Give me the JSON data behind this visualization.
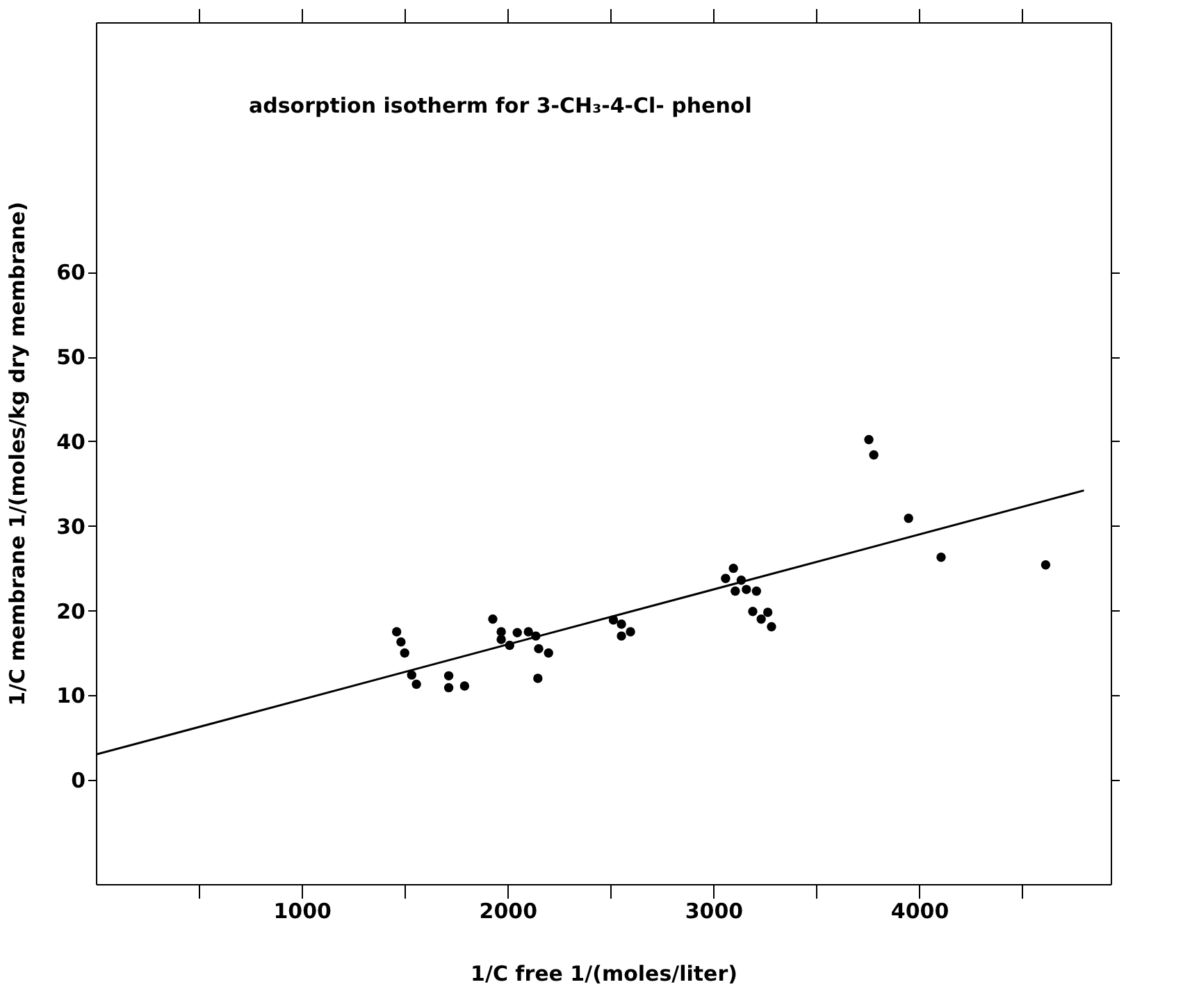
{
  "chart_data": {
    "type": "scatter",
    "xlabel": "1/C free        1/(moles/liter)",
    "ylabel": "1/C membrane        1/(moles/kg dry membrane)",
    "annotations": [
      "adsorption isotherm for 3-CH₃-4-Cl- phenol"
    ],
    "xlim": [
      0,
      4930
    ],
    "ylim": [
      -12.3,
      89.5
    ],
    "xticks": [
      {
        "value": 500,
        "label": null
      },
      1000,
      {
        "value": 1500,
        "label": null
      },
      2000,
      {
        "value": 2500,
        "label": null
      },
      3000,
      {
        "value": 3500,
        "label": null
      },
      4000,
      {
        "value": 4500,
        "label": null
      }
    ],
    "yticks": [
      0,
      10,
      20,
      30,
      40,
      50,
      60
    ],
    "grid": false,
    "marker": "circle",
    "series": [
      {
        "color": "#000000",
        "x": [
          1461,
          1482,
          1500,
          1534,
          1557,
          1714,
          1714,
          1791,
          1928,
          1969,
          1969,
          2010,
          2047,
          2101,
          2137,
          2151,
          2147,
          2199,
          2514,
          2553,
          2553,
          2597,
          3059,
          3097,
          3135,
          3106,
          3160,
          3209,
          3191,
          3264,
          3232,
          3282,
          3755,
          3779,
          3948,
          4106,
          4614
        ],
        "values": [
          17.5,
          16.3,
          15.0,
          12.4,
          11.3,
          12.3,
          10.9,
          11.1,
          19.0,
          17.5,
          16.6,
          15.9,
          17.4,
          17.5,
          17.0,
          15.5,
          12.0,
          15.0,
          18.9,
          18.4,
          17.0,
          17.5,
          23.8,
          25.0,
          23.6,
          22.3,
          22.5,
          22.3,
          19.9,
          19.8,
          19.0,
          18.1,
          40.2,
          38.4,
          30.9,
          26.3,
          25.4
        ]
      },
      {
        "type": "line",
        "color": "#000000",
        "line_style": "solid",
        "marker": "none",
        "x": [
          0,
          4800
        ],
        "values": [
          3.0,
          34.2
        ]
      }
    ]
  }
}
